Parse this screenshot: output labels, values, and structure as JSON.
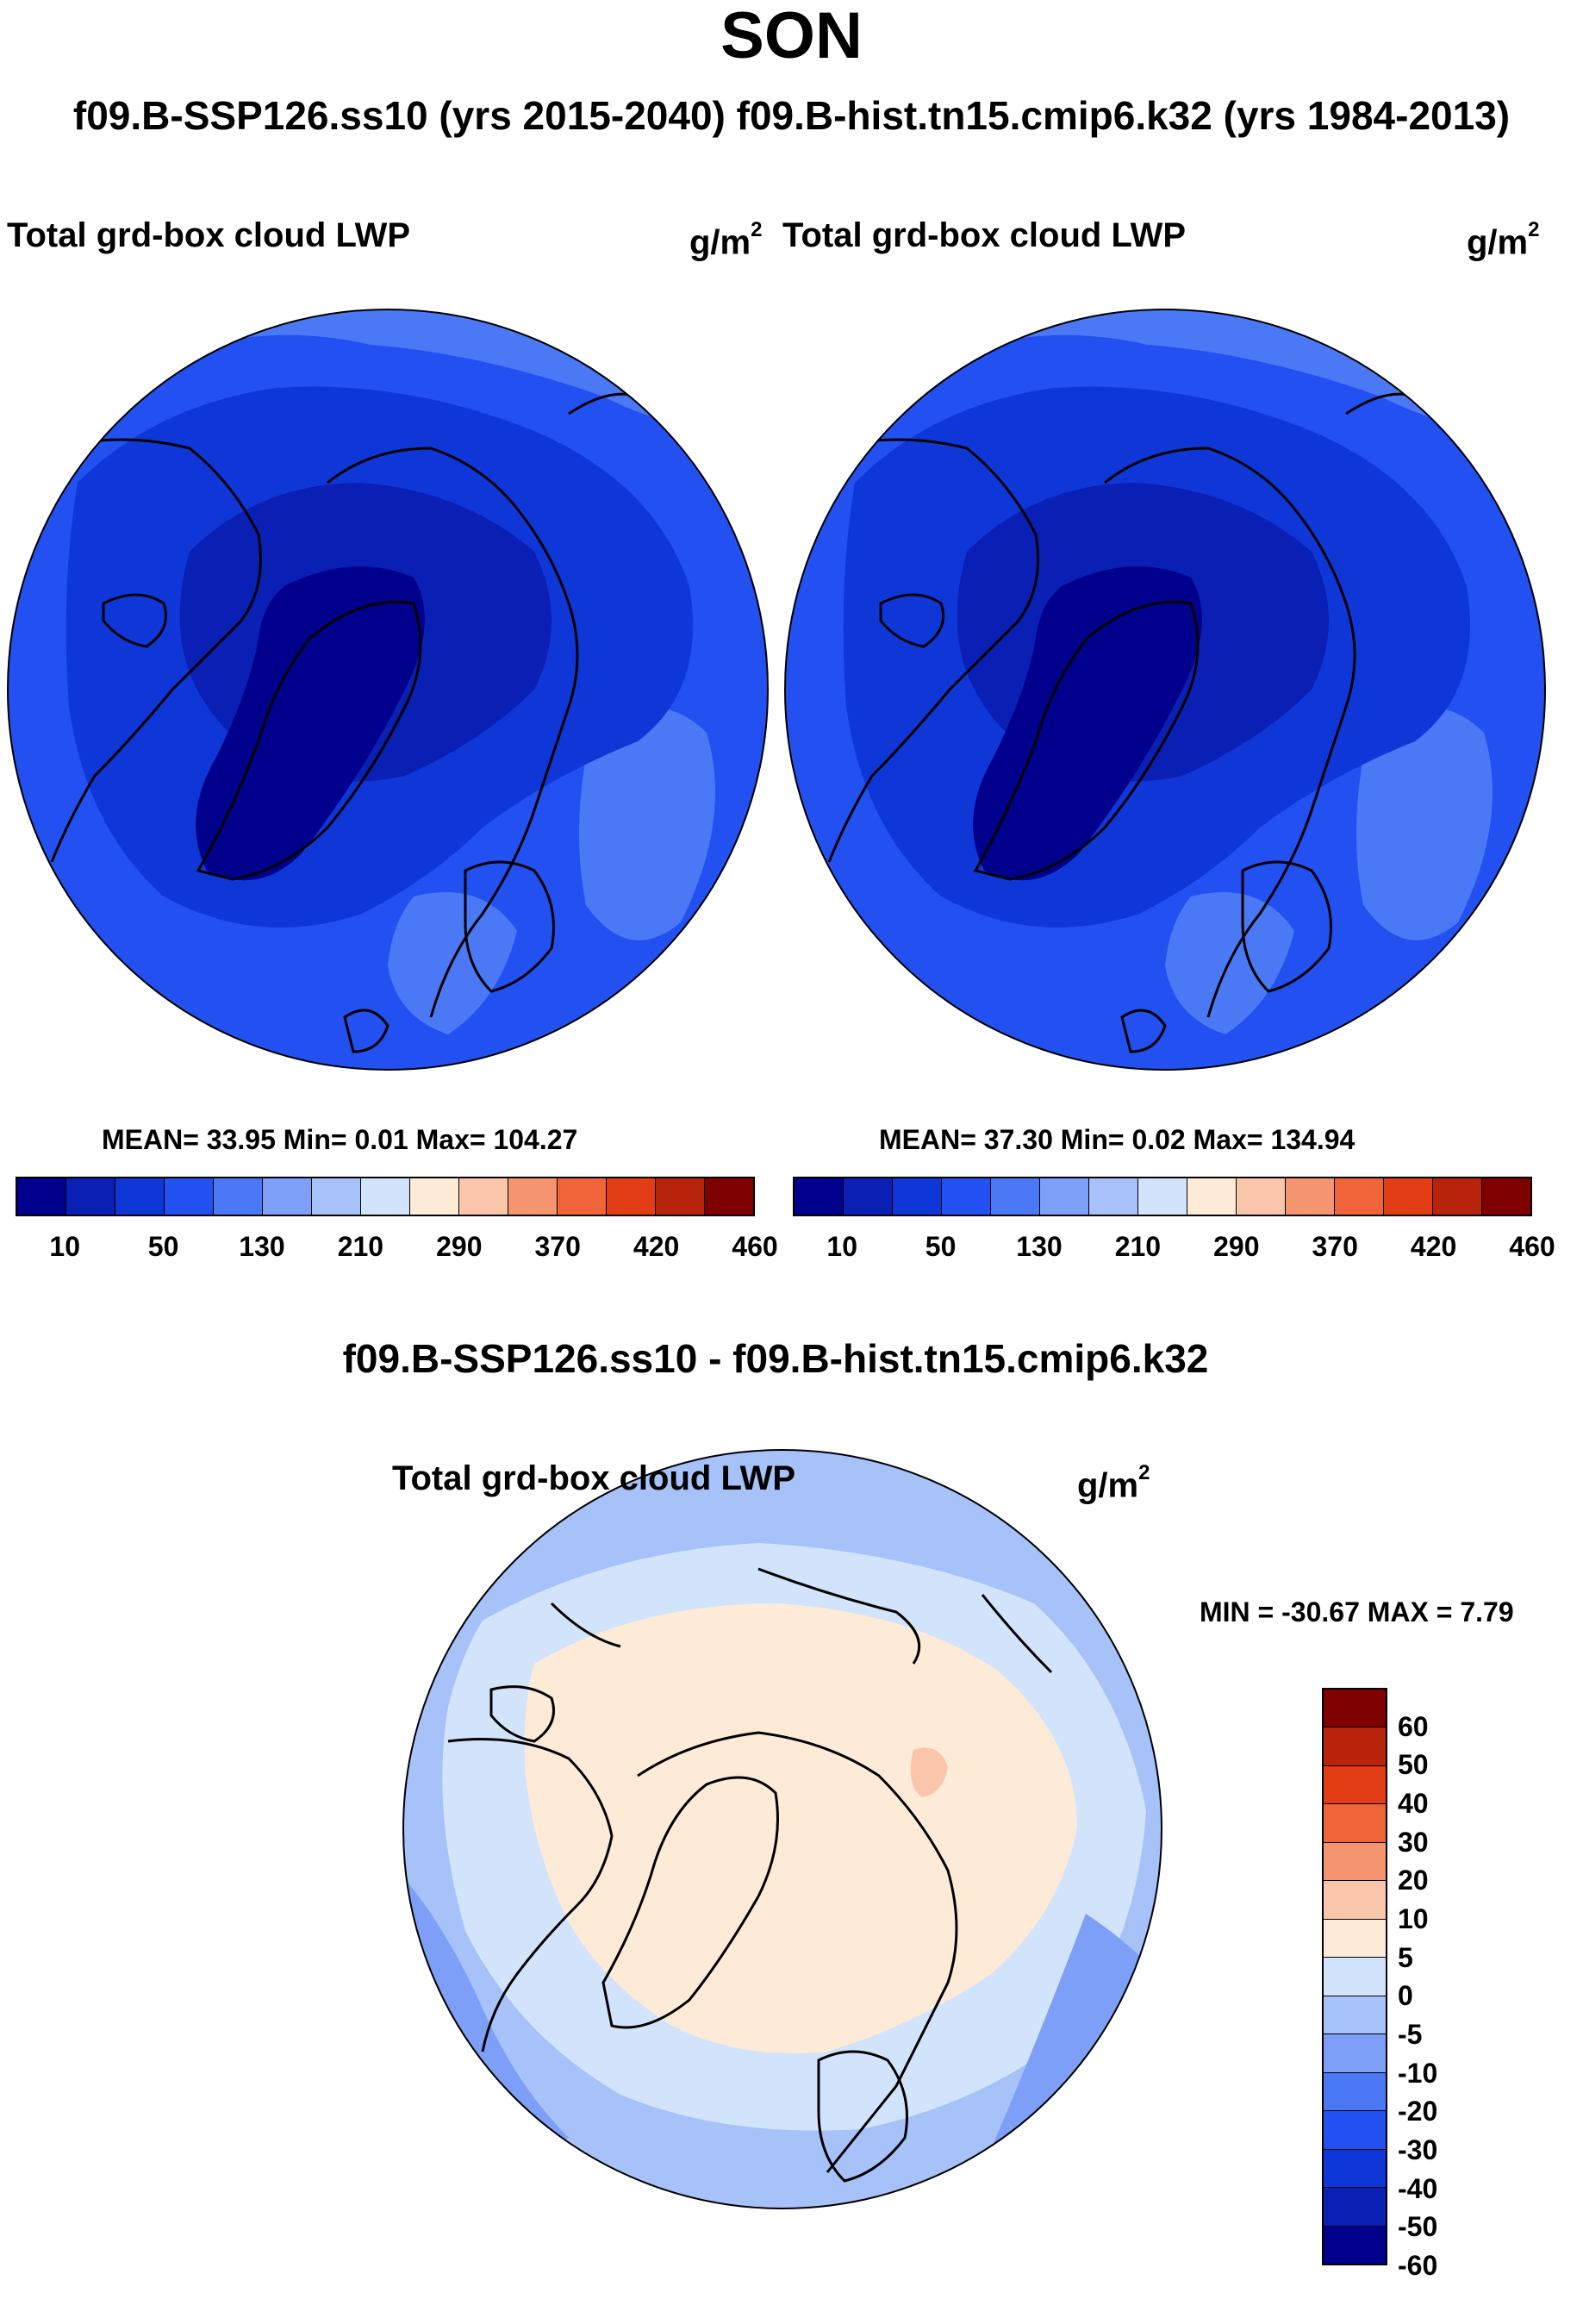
{
  "title": "SON",
  "runs_line": "f09.B-SSP126.ss10 (yrs 2015-2040)  f09.B-hist.tn15.cmip6.k32 (yrs 1984-2013)",
  "panel_left": {
    "title": "Total grd-box cloud LWP",
    "units": "g/m",
    "units_exp": "2",
    "stats": "MEAN=  33.95  Min=    0.01  Max= 104.27"
  },
  "panel_right": {
    "title": "Total grd-box cloud LWP",
    "units": "g/m",
    "units_exp": "2",
    "stats": "MEAN=  37.30  Min=    0.02  Max= 134.94"
  },
  "abs_colorbar": {
    "colors": [
      "#00008c",
      "#0a1fb4",
      "#0f37d7",
      "#2350f0",
      "#4b78f5",
      "#7d9ff7",
      "#a7c1f9",
      "#d2e4fb",
      "#fdebd8",
      "#f9c6ab",
      "#f49570",
      "#ef6438",
      "#e23d14",
      "#b8230c",
      "#7f0000"
    ],
    "ticks": [
      "10",
      "50",
      "130",
      "210",
      "290",
      "370",
      "420",
      "460"
    ]
  },
  "difference": {
    "title": "f09.B-SSP126.ss10 - f09.B-hist.tn15.cmip6.k32",
    "panel_title": "Total grd-box cloud LWP",
    "units": "g/m",
    "units_exp": "2",
    "stats": "MIN = -30.67 MAX =   7.79"
  },
  "diff_colorbar": {
    "colors": [
      "#7f0000",
      "#b8230c",
      "#e23d14",
      "#ef6438",
      "#f49570",
      "#f9c6ab",
      "#fdebd8",
      "#d2e4fb",
      "#a7c1f9",
      "#7d9ff7",
      "#4b78f5",
      "#2350f0",
      "#0f37d7",
      "#0a1fb4",
      "#00008c"
    ],
    "labels": [
      "60",
      "50",
      "40",
      "30",
      "20",
      "10",
      "5",
      "0",
      "-5",
      "-10",
      "-20",
      "-30",
      "-40",
      "-50",
      "-60"
    ]
  },
  "map_colors": {
    "left": {
      "outer": "#2350f0",
      "mid": "#0f37d7",
      "inner": "#0a1fb4",
      "core": "#00008c",
      "light": "#4b78f5"
    },
    "right": {
      "outer": "#2350f0",
      "mid": "#0f37d7",
      "inner": "#0a1fb4",
      "core": "#00008c",
      "light": "#4b78f5"
    },
    "diff": {
      "base": "#d2e4fb",
      "pos": "#fdebd8",
      "neg1": "#a7c1f9",
      "neg2": "#7d9ff7",
      "pos2": "#f9c6ab"
    }
  }
}
